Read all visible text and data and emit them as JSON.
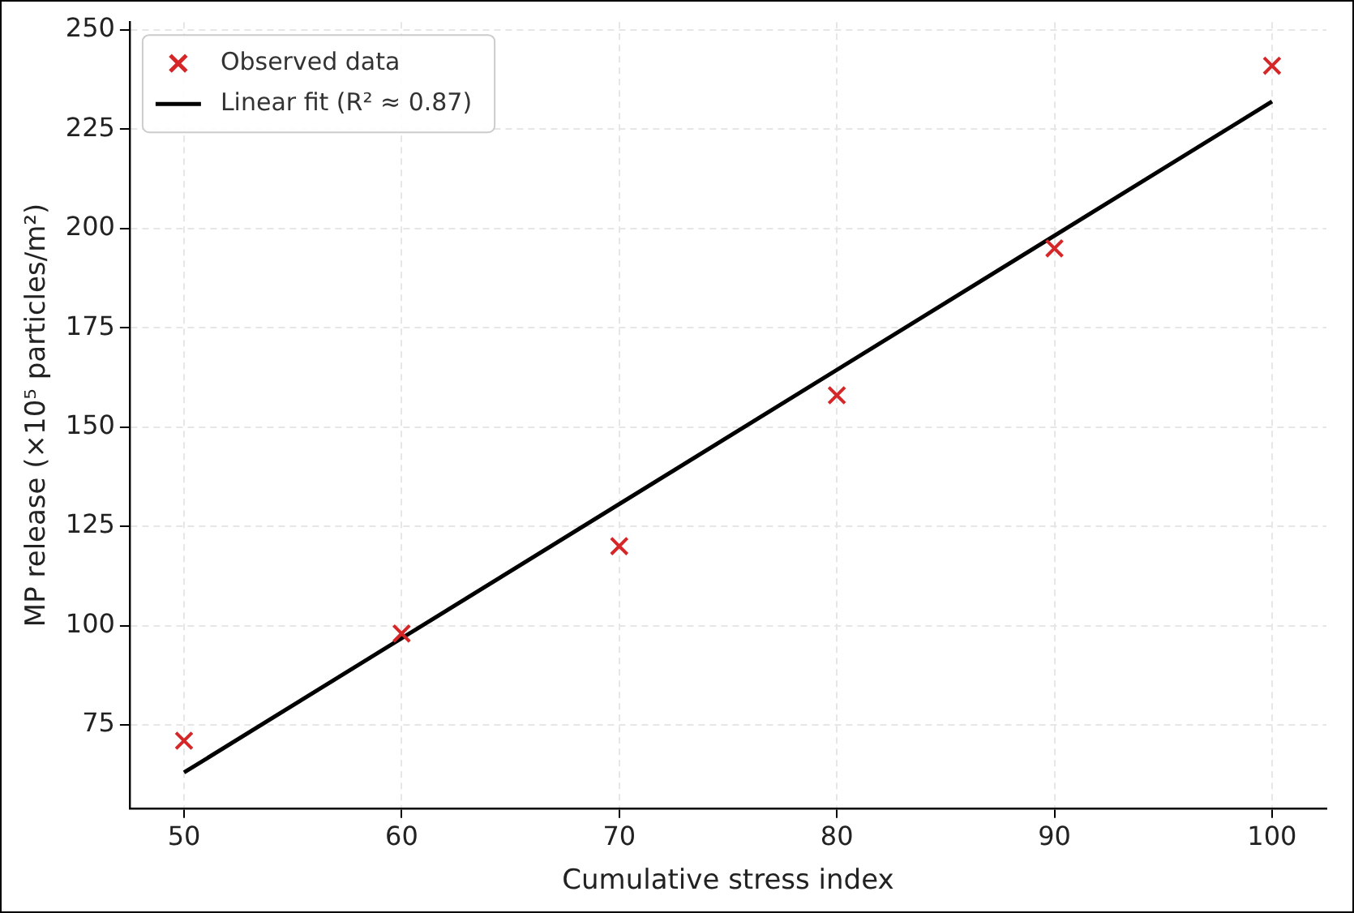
{
  "chart_data": {
    "type": "scatter",
    "xlabel": "Cumulative stress index",
    "ylabel": "MP release (×10⁵ particles/m²)",
    "xlim": [
      47.5,
      102.5
    ],
    "xticks": [
      50,
      60,
      70,
      80,
      90,
      100
    ],
    "ylim": [
      54,
      252
    ],
    "yticks": [
      75,
      100,
      125,
      150,
      175,
      200,
      225,
      250
    ],
    "grid": true,
    "legend": "top left",
    "marker": "cross",
    "series": [
      {
        "name": "Observed data",
        "type": "scatter",
        "color": "#d62728",
        "x": [
          50,
          60,
          70,
          80,
          90,
          100
        ],
        "values": [
          71,
          98,
          120,
          158,
          195,
          241
        ]
      },
      {
        "name": "Linear fit (R² ≈ 0.87)",
        "type": "line",
        "color": "#000000",
        "line_style": "solid",
        "marker": "none",
        "x": [
          50,
          100
        ],
        "values": [
          63,
          232
        ]
      }
    ]
  }
}
